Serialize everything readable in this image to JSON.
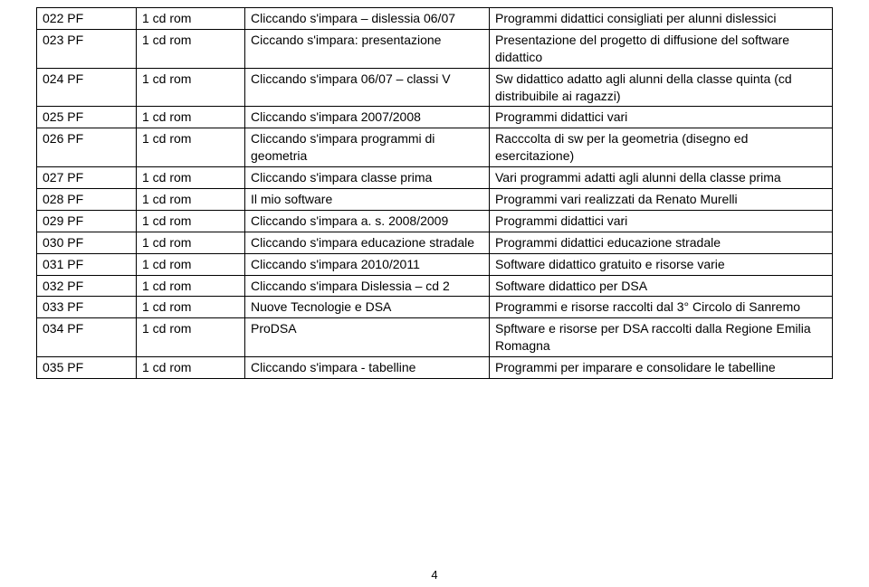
{
  "page_number": "4",
  "columns": {
    "c1_width": 110,
    "c2_width": 120,
    "c3_width": 270
  },
  "rows": [
    {
      "code": "022 PF",
      "media": "1 cd rom",
      "title": "Cliccando s'impara – dislessia 06/07",
      "desc": "Programmi didattici consigliati per alunni dislessici"
    },
    {
      "code": "023 PF",
      "media": "1 cd rom",
      "title": "Ciccando s'impara: presentazione",
      "desc": "Presentazione del progetto di diffusione del software didattico"
    },
    {
      "code": "024 PF",
      "media": "1 cd rom",
      "title": "Cliccando s'impara 06/07 – classi V",
      "desc": "Sw didattico adatto agli alunni della classe quinta (cd distribuibile ai ragazzi)"
    },
    {
      "code": "025 PF",
      "media": "1 cd rom",
      "title": "Cliccando s'impara 2007/2008",
      "desc": "Programmi didattici vari"
    },
    {
      "code": "026 PF",
      "media": "1 cd rom",
      "title": "Cliccando s'impara programmi di geometria",
      "desc": "Racccolta di sw per la geometria (disegno ed esercitazione)"
    },
    {
      "code": "027 PF",
      "media": "1 cd rom",
      "title": "Cliccando s'impara classe prima",
      "desc": "Vari programmi adatti agli alunni della classe prima"
    },
    {
      "code": "028 PF",
      "media": "1 cd rom",
      "title": "Il mio software",
      "desc": "Programmi vari realizzati da Renato Murelli"
    },
    {
      "code": "029 PF",
      "media": "1 cd rom",
      "title": "Cliccando s'impara a. s. 2008/2009",
      "desc": "Programmi didattici vari"
    },
    {
      "code": "030 PF",
      "media": "1 cd rom",
      "title": "Cliccando s'impara educazione stradale",
      "desc": "Programmi didattici educazione stradale"
    },
    {
      "code": "031 PF",
      "media": "1 cd rom",
      "title": "Cliccando s'impara 2010/2011",
      "desc": "Software didattico gratuito e risorse varie"
    },
    {
      "code": "032 PF",
      "media": "1 cd rom",
      "title": "Cliccando s'impara Dislessia – cd 2",
      "desc": "Software didattico per DSA"
    },
    {
      "code": "033 PF",
      "media": "1 cd rom",
      "title": "Nuove Tecnologie e DSA",
      "desc": "Programmi e risorse raccolti dal 3° Circolo di Sanremo"
    },
    {
      "code": "034 PF",
      "media": "1 cd rom",
      "title": "ProDSA",
      "desc": "Spftware e risorse per DSA raccolti dalla Regione Emilia Romagna"
    },
    {
      "code": "035 PF",
      "media": "1 cd rom",
      "title": "Cliccando s'impara - tabelline",
      "desc": "Programmi per imparare e consolidare le tabelline"
    }
  ]
}
